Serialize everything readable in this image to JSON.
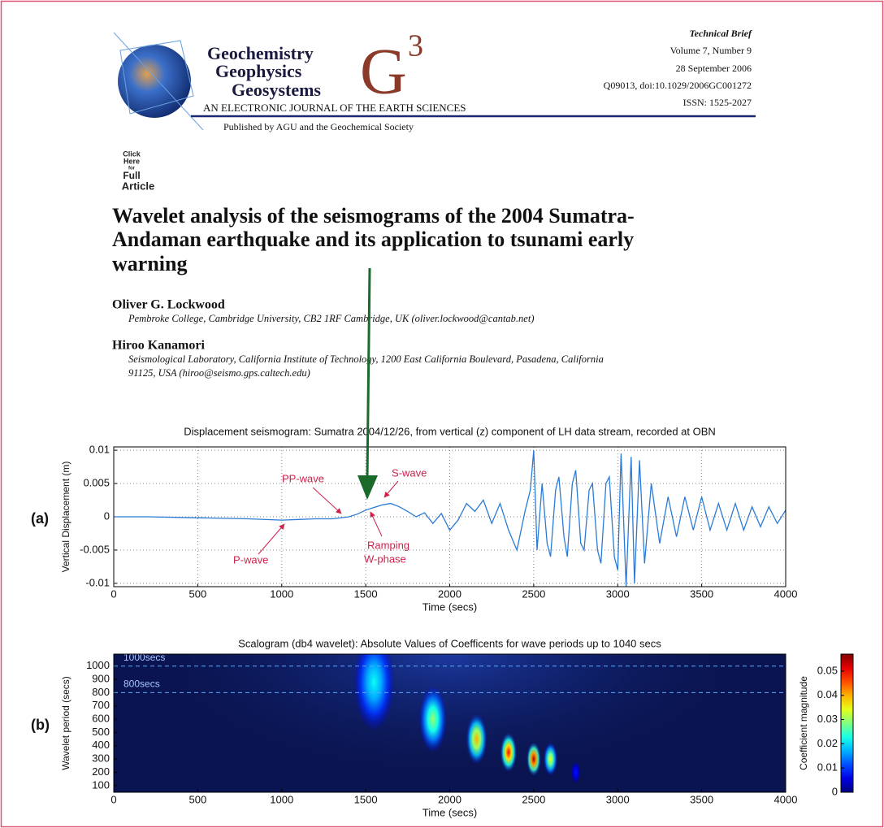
{
  "header": {
    "journal_lines": [
      "Geochemistry",
      "Geophysics",
      "Geosystems"
    ],
    "logo_letter": "G",
    "logo_superscript": "3",
    "subtitle": "AN ELECTRONIC JOURNAL OF THE EARTH SCIENCES",
    "publisher": "Published by AGU and the Geochemical Society",
    "info": [
      "Technical Brief",
      "Volume 7, Number 9",
      "28 September 2006",
      "Q09013, doi:10.1029/2006GC001272",
      "ISSN: 1525-2027"
    ]
  },
  "click_here": [
    "Click",
    "Here",
    "for",
    "Full",
    "Article"
  ],
  "title_lines": [
    "Wavelet analysis of the seismograms of the 2004 Sumatra-",
    "Andaman earthquake and its application to tsunami early",
    "warning"
  ],
  "authors": [
    {
      "name": "Oliver G. Lockwood",
      "affiliation": [
        "Pembroke College, Cambridge University, CB2 1RF Cambridge, UK (oliver.lockwood@cantab.net)"
      ]
    },
    {
      "name": "Hiroo Kanamori",
      "affiliation": [
        "Seismological Laboratory, California Institute of Technology, 1200 East California Boulevard, Pasadena, California",
        "91125, USA (hiroo@seismo.gps.caltech.edu)"
      ]
    }
  ],
  "chart_data": [
    {
      "type": "line",
      "panel_label": "(a)",
      "title": "Displacement seismogram: Sumatra 2004/12/26, from vertical (z) component of LH data stream, recorded at OBN",
      "x_label": "Time (secs)",
      "y_label": "Vertical Displacement (m)",
      "color": "#2b7bd6",
      "grid": true,
      "xlim": [
        0,
        4000
      ],
      "ylim": [
        -0.0105,
        0.0105
      ],
      "xticks": [
        0,
        500,
        1000,
        1500,
        2000,
        2500,
        3000,
        3500,
        4000
      ],
      "yticks": [
        0.01,
        0.005,
        0,
        -0.005,
        -0.01
      ],
      "annotations": [
        "PP-wave",
        "S-wave",
        "P-wave",
        "Ramping",
        "W-phase"
      ],
      "x": [
        0,
        200,
        400,
        600,
        800,
        1000,
        1100,
        1200,
        1300,
        1400,
        1450,
        1500,
        1550,
        1600,
        1650,
        1700,
        1750,
        1800,
        1850,
        1900,
        1950,
        2000,
        2050,
        2100,
        2150,
        2200,
        2250,
        2300,
        2350,
        2400,
        2450,
        2480,
        2500,
        2520,
        2550,
        2580,
        2600,
        2630,
        2650,
        2680,
        2700,
        2730,
        2750,
        2780,
        2800,
        2830,
        2850,
        2880,
        2900,
        2930,
        2950,
        2980,
        3000,
        3020,
        3050,
        3080,
        3100,
        3130,
        3160,
        3200,
        3250,
        3300,
        3350,
        3400,
        3450,
        3500,
        3550,
        3600,
        3650,
        3700,
        3750,
        3800,
        3850,
        3900,
        3950,
        4000
      ],
      "values": [
        0,
        0,
        -0.0001,
        -0.0002,
        -0.0003,
        -0.0005,
        -0.0004,
        -0.0003,
        -0.0003,
        0,
        0.0004,
        0.001,
        0.0014,
        0.0018,
        0.002,
        0.0015,
        0.0008,
        0,
        0.0006,
        -0.001,
        0.0005,
        -0.002,
        -0.0005,
        0.002,
        0.0008,
        0.0025,
        -0.001,
        0.002,
        -0.002,
        -0.005,
        0.001,
        0.004,
        0.01,
        -0.005,
        0.005,
        -0.004,
        -0.006,
        0.004,
        0.006,
        -0.003,
        -0.006,
        0.005,
        0.007,
        -0.004,
        -0.005,
        0.004,
        0.005,
        -0.005,
        -0.007,
        0.005,
        0.006,
        -0.006,
        -0.008,
        0.0095,
        -0.0105,
        0.009,
        -0.01,
        0.0085,
        -0.007,
        0.005,
        -0.004,
        0.003,
        -0.003,
        0.003,
        -0.002,
        0.003,
        -0.002,
        0.002,
        -0.002,
        0.002,
        -0.002,
        0.0015,
        -0.0015,
        0.0015,
        -0.001,
        0.001
      ]
    },
    {
      "type": "heatmap",
      "panel_label": "(b)",
      "title": "Scalogram (db4 wavelet): Absolute Values of Coefficents for wave periods up to 1040 secs",
      "x_label": "Time (secs)",
      "y_label": "Wavelet period (secs)",
      "xlim": [
        0,
        4000
      ],
      "ylim": [
        50,
        1090
      ],
      "xticks": [
        0,
        500,
        1000,
        1500,
        2000,
        2500,
        3000,
        3500,
        4000
      ],
      "yticks": [
        100,
        200,
        300,
        400,
        500,
        600,
        700,
        800,
        900,
        1000
      ],
      "reference_lines": [
        {
          "value": 1000,
          "label": "1000secs"
        },
        {
          "value": 800,
          "label": "800secs"
        }
      ],
      "x": [
        1550,
        1900,
        2160,
        2350,
        2500,
        2600,
        2750
      ],
      "y": [
        880,
        600,
        450,
        350,
        300,
        300,
        200
      ],
      "values": [
        0.022,
        0.03,
        0.04,
        0.05,
        0.055,
        0.035,
        0.008
      ],
      "clim": [
        0,
        0.057
      ],
      "cticks": [
        0,
        0.01,
        0.02,
        0.03,
        0.04,
        0.05
      ],
      "colorbar_label": "Coefficient magnitude"
    }
  ]
}
